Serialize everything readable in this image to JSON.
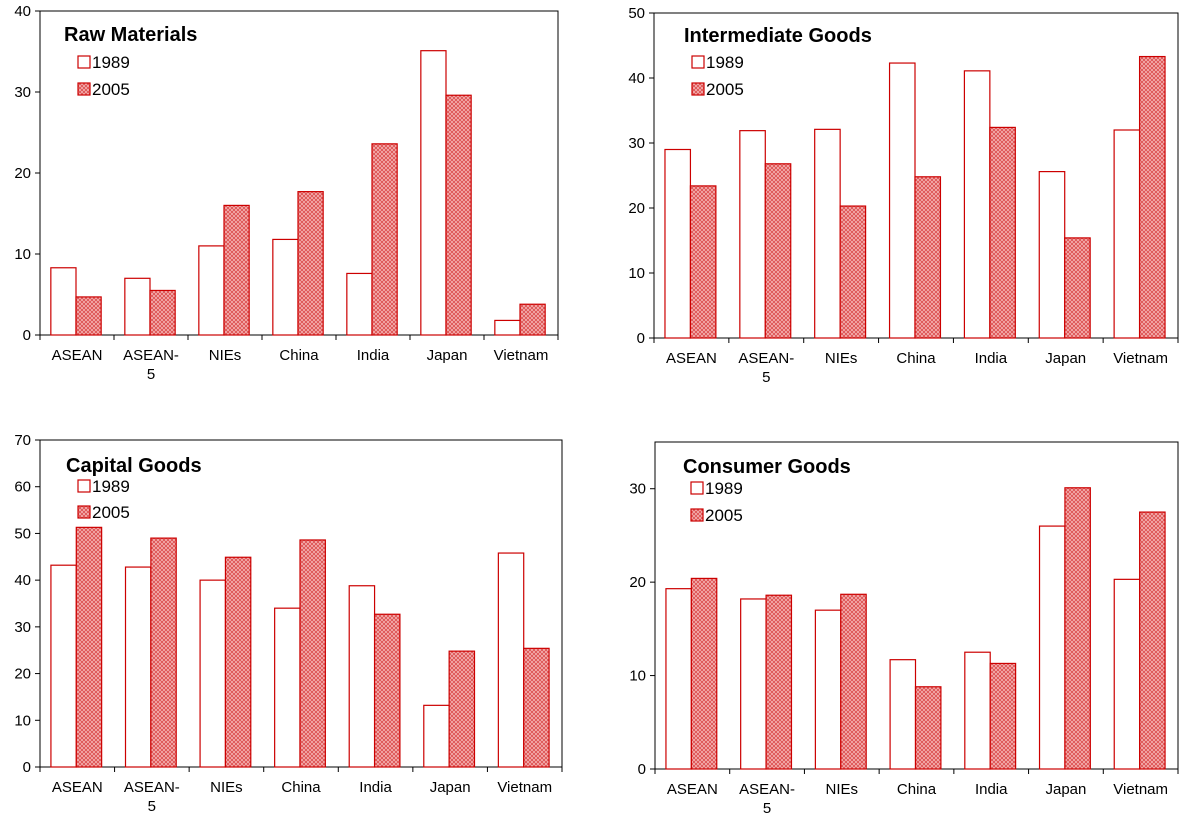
{
  "colors": {
    "border": "#cc0000",
    "fill1989": "#ffffff",
    "fill2005": "#f2a0a0"
  },
  "chart_data": [
    {
      "type": "bar",
      "title": "Raw Materials",
      "categories": [
        "ASEAN",
        "ASEAN-5",
        "NIEs",
        "China",
        "India",
        "Japan",
        "Vietnam"
      ],
      "ylim": [
        0,
        40
      ],
      "yticks": [
        0,
        10,
        20,
        30,
        40
      ],
      "legend_position": "top-left",
      "series": [
        {
          "name": "1989",
          "values": [
            8.3,
            7.0,
            11.0,
            11.8,
            7.6,
            35.1,
            1.8
          ]
        },
        {
          "name": "2005",
          "values": [
            4.7,
            5.5,
            16.0,
            17.7,
            23.6,
            29.6,
            3.8
          ]
        }
      ]
    },
    {
      "type": "bar",
      "title": "Intermediate Goods",
      "categories": [
        "ASEAN",
        "ASEAN-5",
        "NIEs",
        "China",
        "India",
        "Japan",
        "Vietnam"
      ],
      "ylim": [
        0,
        50
      ],
      "yticks": [
        0,
        10,
        20,
        30,
        40,
        50
      ],
      "legend_position": "top-left",
      "series": [
        {
          "name": "1989",
          "values": [
            29.0,
            31.9,
            32.1,
            42.3,
            41.1,
            25.6,
            32.0
          ]
        },
        {
          "name": "2005",
          "values": [
            23.4,
            26.8,
            20.3,
            24.8,
            32.4,
            15.4,
            43.3
          ]
        }
      ]
    },
    {
      "type": "bar",
      "title": "Capital Goods",
      "categories": [
        "ASEAN",
        "ASEAN-5",
        "NIEs",
        "China",
        "India",
        "Japan",
        "Vietnam"
      ],
      "ylim": [
        0,
        70
      ],
      "yticks": [
        0,
        10,
        20,
        30,
        40,
        50,
        60,
        70
      ],
      "legend_position": "top-left",
      "series": [
        {
          "name": "1989",
          "values": [
            43.2,
            42.8,
            40.0,
            34.0,
            38.8,
            13.2,
            45.8
          ]
        },
        {
          "name": "2005",
          "values": [
            51.3,
            49.0,
            44.9,
            48.6,
            32.7,
            24.8,
            25.4
          ]
        }
      ]
    },
    {
      "type": "bar",
      "title": "Consumer Goods",
      "categories": [
        "ASEAN",
        "ASEAN-5",
        "NIEs",
        "China",
        "India",
        "Japan",
        "Vietnam"
      ],
      "ylim": [
        0,
        35
      ],
      "yticks": [
        0,
        10,
        20,
        30
      ],
      "legend_position": "top-left",
      "series": [
        {
          "name": "1989",
          "values": [
            19.3,
            18.2,
            17.0,
            11.7,
            12.5,
            26.0,
            20.3
          ]
        },
        {
          "name": "2005",
          "values": [
            20.4,
            18.6,
            18.7,
            8.8,
            11.3,
            30.1,
            27.5
          ]
        }
      ]
    }
  ]
}
